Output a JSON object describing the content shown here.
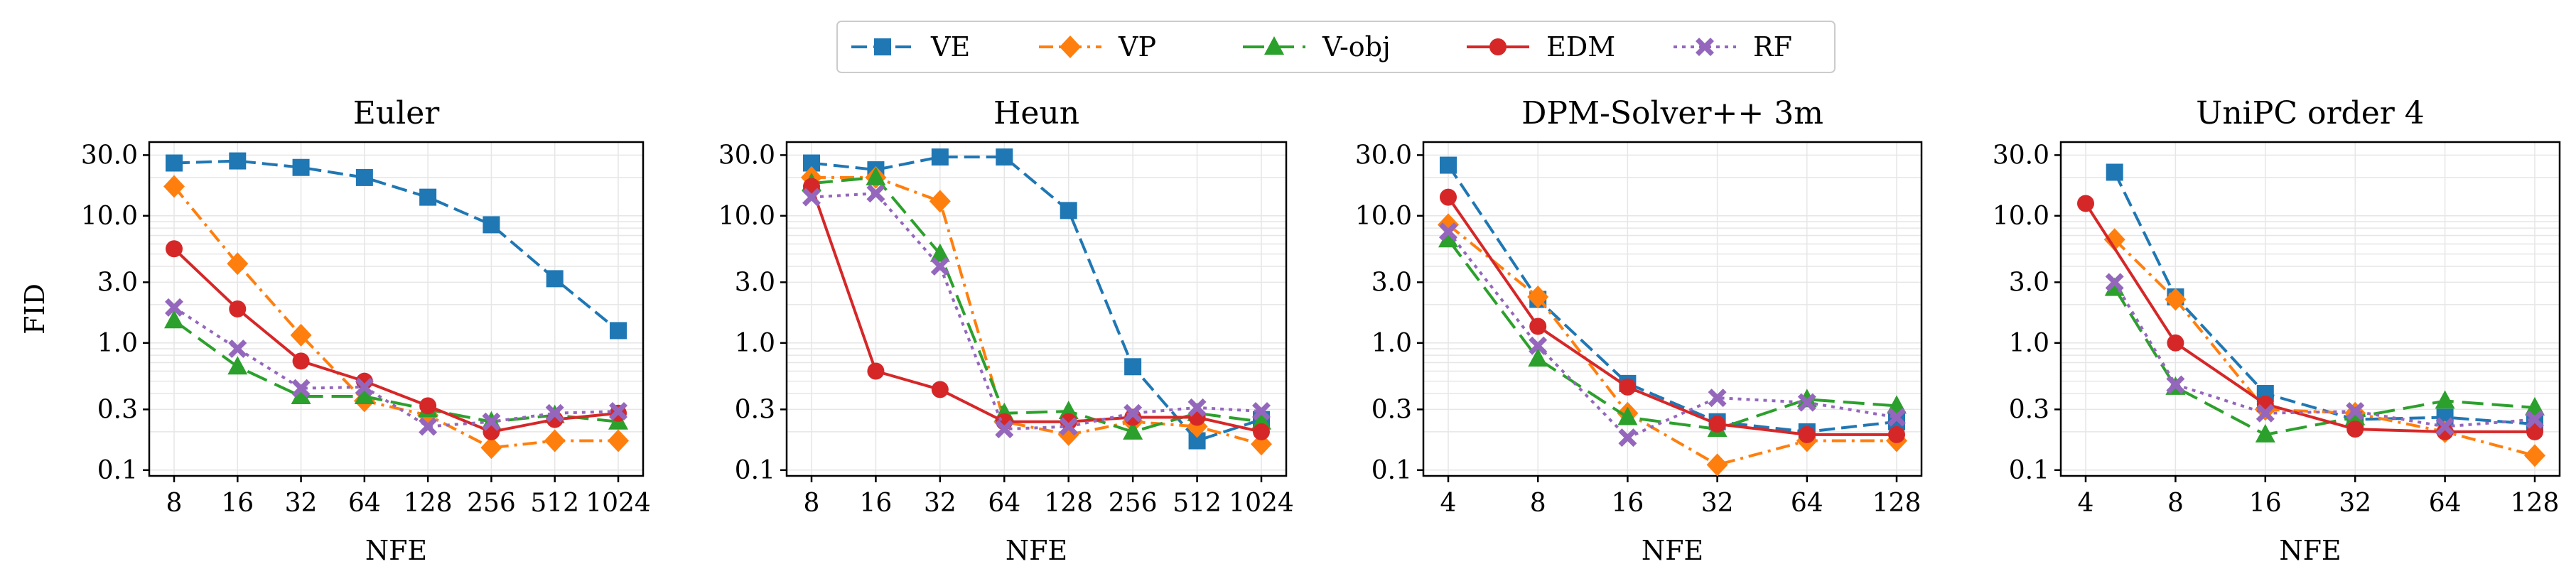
{
  "legend": {
    "placement": "top-center",
    "entries": [
      {
        "name": "VE",
        "color": "#1f77b4",
        "marker": "square",
        "dash": "dashed"
      },
      {
        "name": "VP",
        "color": "#ff7f0e",
        "marker": "diamond",
        "dash": "dashdot"
      },
      {
        "name": "V-obj",
        "color": "#2ca02c",
        "marker": "triangle",
        "dash": "longdash"
      },
      {
        "name": "EDM",
        "color": "#d62728",
        "marker": "circle",
        "dash": "solid"
      },
      {
        "name": "RF",
        "color": "#9467bd",
        "marker": "x",
        "dash": "dotted"
      }
    ]
  },
  "chart_data": [
    {
      "type": "line",
      "title": "Euler",
      "xlabel": "NFE",
      "ylabel": "FID",
      "yscale": "log",
      "ylim": [
        0.09,
        38
      ],
      "yticks": [
        0.1,
        0.3,
        1.0,
        3.0,
        10.0,
        30.0
      ],
      "ytick_labels": [
        "0.1",
        "0.3",
        "1.0",
        "3.0",
        "10.0",
        "30.0"
      ],
      "x": [
        8,
        16,
        32,
        64,
        128,
        256,
        512,
        1024
      ],
      "xtick_labels": [
        "8",
        "16",
        "32",
        "64",
        "128",
        "256",
        "512",
        "1024"
      ],
      "grid": true,
      "series": [
        {
          "name": "VE",
          "values": [
            26,
            27,
            24,
            20,
            14,
            8.5,
            3.2,
            1.25
          ]
        },
        {
          "name": "VP",
          "values": [
            17,
            4.2,
            1.15,
            0.35,
            0.27,
            0.15,
            0.17,
            0.17
          ]
        },
        {
          "name": "V-obj",
          "values": [
            1.5,
            0.65,
            0.38,
            0.38,
            0.3,
            0.24,
            0.27,
            0.24
          ]
        },
        {
          "name": "EDM",
          "values": [
            5.5,
            1.85,
            0.72,
            0.5,
            0.32,
            0.2,
            0.25,
            0.28
          ]
        },
        {
          "name": "RF",
          "values": [
            1.9,
            0.9,
            0.44,
            0.45,
            0.22,
            0.24,
            0.28,
            0.29
          ]
        }
      ]
    },
    {
      "type": "line",
      "title": "Heun",
      "xlabel": "NFE",
      "ylabel": "",
      "yscale": "log",
      "ylim": [
        0.09,
        38
      ],
      "yticks": [
        0.1,
        0.3,
        1.0,
        3.0,
        10.0,
        30.0
      ],
      "ytick_labels": [
        "0.1",
        "0.3",
        "1.0",
        "3.0",
        "10.0",
        "30.0"
      ],
      "x": [
        8,
        16,
        32,
        64,
        128,
        256,
        512,
        1024
      ],
      "xtick_labels": [
        "8",
        "16",
        "32",
        "64",
        "128",
        "256",
        "512",
        "1024"
      ],
      "grid": true,
      "series": [
        {
          "name": "VE",
          "values": [
            26,
            23,
            29,
            29,
            11,
            0.65,
            0.17,
            0.25
          ]
        },
        {
          "name": "VP",
          "values": [
            20,
            20,
            13,
            0.24,
            0.19,
            0.24,
            0.22,
            0.16
          ]
        },
        {
          "name": "V-obj",
          "values": [
            18,
            20,
            5.0,
            0.28,
            0.29,
            0.2,
            0.28,
            0.24
          ]
        },
        {
          "name": "EDM",
          "values": [
            17,
            0.6,
            0.43,
            0.24,
            0.24,
            0.26,
            0.26,
            0.2
          ]
        },
        {
          "name": "RF",
          "values": [
            14,
            15,
            4.0,
            0.21,
            0.22,
            0.28,
            0.31,
            0.29
          ]
        }
      ]
    },
    {
      "type": "line",
      "title": "DPM-Solver++ 3m",
      "xlabel": "NFE",
      "ylabel": "",
      "yscale": "log",
      "ylim": [
        0.09,
        38
      ],
      "yticks": [
        0.1,
        0.3,
        1.0,
        3.0,
        10.0,
        30.0
      ],
      "ytick_labels": [
        "0.1",
        "0.3",
        "1.0",
        "3.0",
        "10.0",
        "30.0"
      ],
      "x": [
        4,
        8,
        16,
        32,
        64,
        128
      ],
      "xtick_labels": [
        "4",
        "8",
        "16",
        "32",
        "64",
        "128"
      ],
      "grid": true,
      "series": [
        {
          "name": "VE",
          "values": [
            25,
            2.2,
            0.48,
            0.24,
            0.2,
            0.24
          ]
        },
        {
          "name": "VP",
          "values": [
            8.5,
            2.3,
            0.28,
            0.11,
            0.17,
            0.17
          ]
        },
        {
          "name": "V-obj",
          "values": [
            6.5,
            0.75,
            0.26,
            0.21,
            0.36,
            0.32
          ]
        },
        {
          "name": "EDM",
          "values": [
            14,
            1.35,
            0.45,
            0.23,
            0.19,
            0.19
          ]
        },
        {
          "name": "RF",
          "values": [
            7.5,
            0.95,
            0.18,
            0.37,
            0.34,
            0.26
          ]
        }
      ]
    },
    {
      "type": "line",
      "title": "UniPC order 4",
      "xlabel": "NFE",
      "ylabel": "",
      "yscale": "log",
      "ylim": [
        0.09,
        38
      ],
      "yticks": [
        0.1,
        0.3,
        1.0,
        3.0,
        10.0,
        30.0
      ],
      "ytick_labels": [
        "0.1",
        "0.3",
        "1.0",
        "3.0",
        "10.0",
        "30.0"
      ],
      "x_start": 4,
      "xtick_positions": [
        4,
        8,
        16,
        32,
        64,
        128
      ],
      "xtick_labels": [
        "4",
        "8",
        "16",
        "32",
        "64",
        "128"
      ],
      "grid": true,
      "series": [
        {
          "name": "VE",
          "x": [
            5,
            8,
            16,
            32,
            64,
            128
          ],
          "values": [
            22,
            2.3,
            0.4,
            0.25,
            0.26,
            0.23
          ]
        },
        {
          "name": "VP",
          "x": [
            5,
            8,
            16,
            32,
            64,
            128
          ],
          "values": [
            6.5,
            2.2,
            0.3,
            0.28,
            0.2,
            0.13
          ]
        },
        {
          "name": "V-obj",
          "x": [
            5,
            8,
            16,
            32,
            64,
            128
          ],
          "values": [
            2.7,
            0.45,
            0.19,
            0.26,
            0.35,
            0.31
          ]
        },
        {
          "name": "EDM",
          "x": [
            4,
            8,
            16,
            32,
            64,
            128
          ],
          "values": [
            12.5,
            1.0,
            0.33,
            0.21,
            0.2,
            0.2
          ]
        },
        {
          "name": "RF",
          "x": [
            5,
            8,
            16,
            32,
            64,
            128
          ],
          "values": [
            3.0,
            0.47,
            0.28,
            0.29,
            0.22,
            0.25
          ]
        }
      ]
    }
  ]
}
